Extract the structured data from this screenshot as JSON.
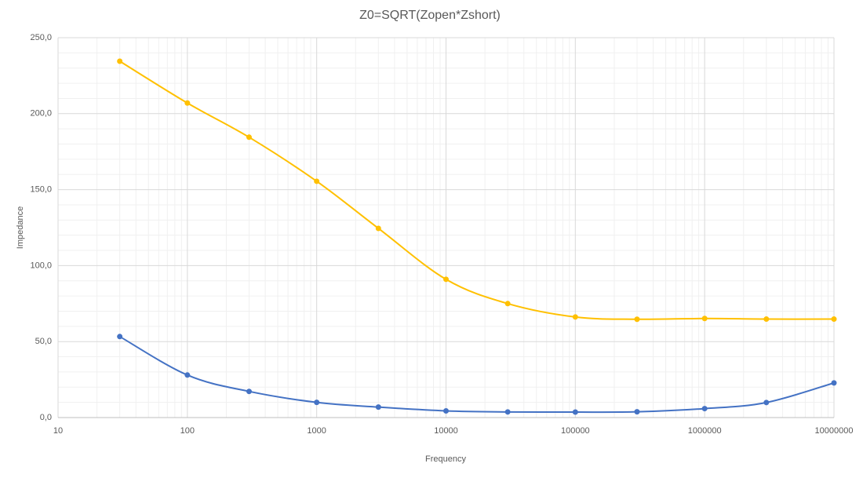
{
  "chart_data": {
    "type": "scatter",
    "title": "Z0=SQRT(Zopen*Zshort)",
    "x_label": "Frequency",
    "y_label": "Impedance",
    "x": [
      30,
      100,
      300,
      1000,
      3000,
      10000,
      30000,
      100000,
      300000,
      1000000,
      3000000,
      10000000
    ],
    "series": [
      {
        "color": "#FFC000",
        "values": [
          234.5,
          207.0,
          184.5,
          155.5,
          124.5,
          91.0,
          75.0,
          66.2,
          64.7,
          65.2,
          64.8,
          64.8
        ]
      },
      {
        "color": "#4472C4",
        "values": [
          53.3,
          28.0,
          17.2,
          10.0,
          6.9,
          4.4,
          3.7,
          3.6,
          3.8,
          5.9,
          9.9,
          22.8
        ]
      }
    ],
    "xlim": [
      10,
      10000000
    ],
    "xticks": [
      10,
      100,
      1000,
      10000,
      100000,
      1000000,
      10000000
    ],
    "xlog": true,
    "ylim": [
      0,
      250
    ],
    "yticks": [
      {
        "value": 0,
        "label": "0,0"
      },
      {
        "value": 50,
        "label": "50,0"
      },
      {
        "value": 100,
        "label": "100,0"
      },
      {
        "value": 150,
        "label": "150,0"
      },
      {
        "value": 200,
        "label": "200,0"
      },
      {
        "value": 250,
        "label": "250,0"
      }
    ],
    "grid": true,
    "minor_grid": true,
    "smooth": true
  }
}
